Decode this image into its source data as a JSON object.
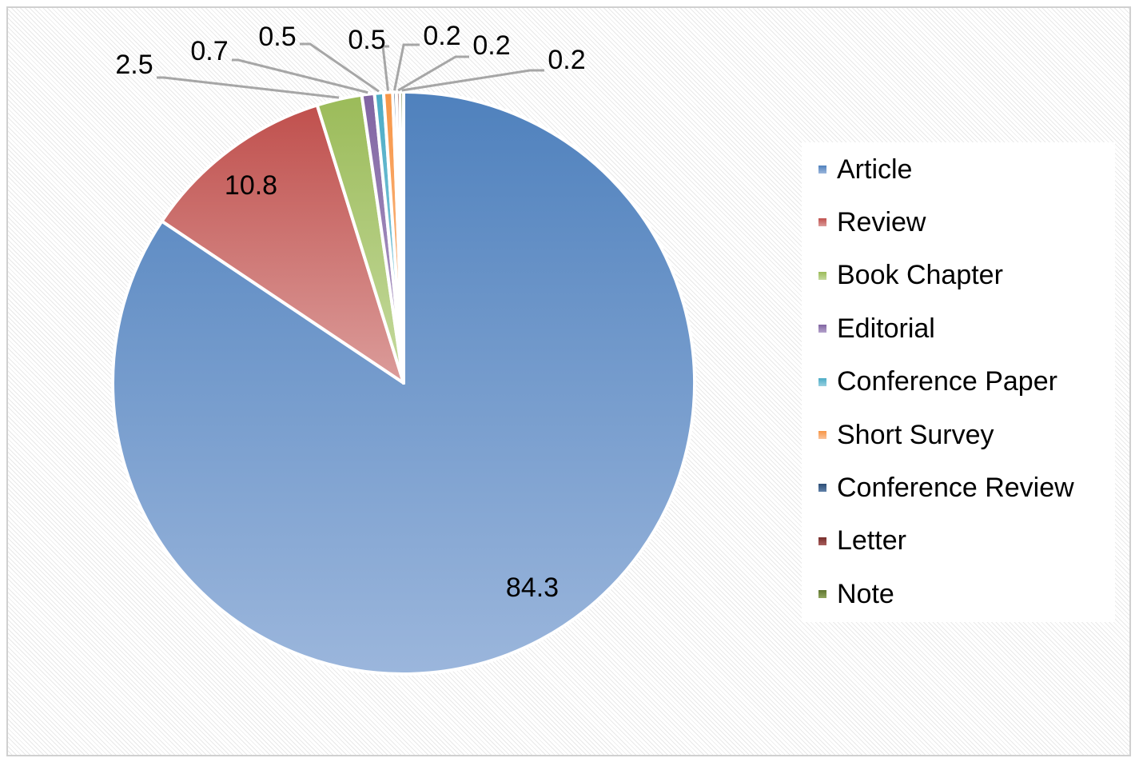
{
  "chart_data": {
    "type": "pie",
    "title": "",
    "series": [
      {
        "name": "Article",
        "value": 84.3,
        "color": "#4F81BD",
        "light": "#9BB6DC"
      },
      {
        "name": "Review",
        "value": 10.8,
        "color": "#C0504D",
        "light": "#DB9C9A"
      },
      {
        "name": "Book Chapter",
        "value": 2.5,
        "color": "#9BBB59",
        "light": "#C5DA9E"
      },
      {
        "name": "Editorial",
        "value": 0.7,
        "color": "#8064A2",
        "light": "#B4A2CB"
      },
      {
        "name": "Conference Paper",
        "value": 0.5,
        "color": "#4BACC6",
        "light": "#98D0E0"
      },
      {
        "name": "Short Survey",
        "value": 0.5,
        "color": "#F79646",
        "light": "#FAC29A"
      },
      {
        "name": "Conference Review",
        "value": 0.2,
        "color": "#2C4D75",
        "light": "#5E80A8"
      },
      {
        "name": "Letter",
        "value": 0.2,
        "color": "#772C2A",
        "light": "#A85E5C"
      },
      {
        "name": "Note",
        "value": 0.2,
        "color": "#5F7530",
        "light": "#8FA55E"
      }
    ],
    "data_labels": [
      "84.3",
      "10.8",
      "2.5",
      "0.7",
      "0.5",
      "0.5",
      "0.2",
      "0.2",
      "0.2"
    ],
    "legend_position": "right",
    "slice_border_color": "#FFFFFF",
    "leader_line_color": "#A6A6A6"
  }
}
